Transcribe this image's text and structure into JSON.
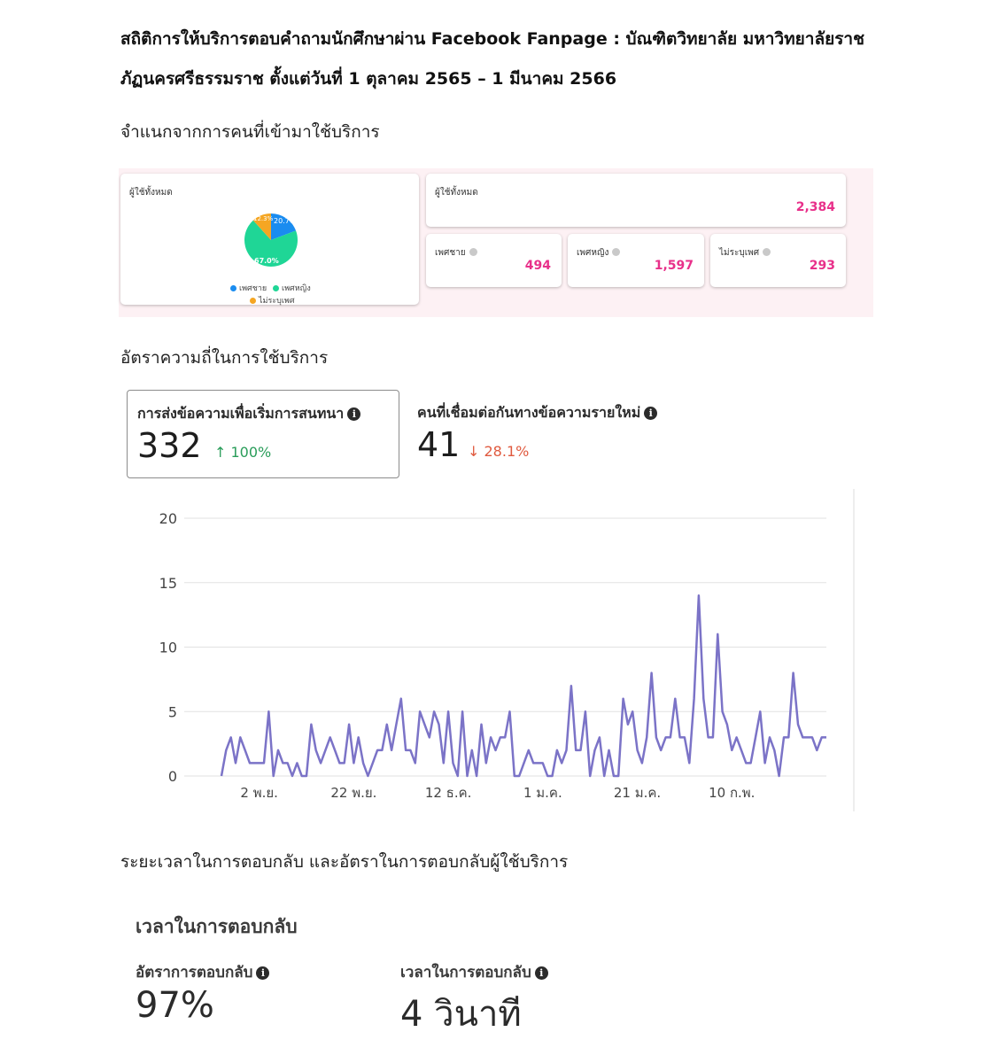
{
  "doc": {
    "title_line1": "สถิติการให้บริการตอบคำถามนักศึกษาผ่าน Facebook Fanpage : บัณฑิตวิทยาลัย มหาวิทยาลัยราช",
    "title_line2": "ภัฏนครศรีธรรมราช ตั้งแต่วันที่ 1 ตุลาคม 2565 – 1 มีนาคม 2566",
    "section1": "จำแนกจากการคนที่เข้ามาใช้บริการ",
    "section2": "อัตราความถี่ในการใช้บริการ",
    "section3": "ระยะเวลาในการตอบกลับ และอัตราในการตอบกลับผู้ใช้บริการ"
  },
  "demographics": {
    "pie_card_label": "ผู้ใช้ทั้งหมด",
    "total_label": "ผู้ใช้ทั้งหมด",
    "total_value": "2,384",
    "male_label": "เพศชาย",
    "male_value": "494",
    "female_label": "เพศหญิง",
    "female_value": "1,597",
    "unknown_label": "ไม่ระบุเพศ",
    "unknown_value": "293",
    "pie_label_male": "20.7%",
    "pie_label_female": "67.0%",
    "pie_label_unknown": "12.3%",
    "legend_male": "เพศชาย",
    "legend_female": "เพศหญิง",
    "legend_unknown": "ไม่ระบุเพศ",
    "colors": {
      "male": "#1a8cf0",
      "female": "#1fd696",
      "unknown": "#f5a623"
    }
  },
  "metrics": {
    "conversations_label": "การส่งข้อความเพื่อเริ่มการสนทนา",
    "conversations_value": "332",
    "conversations_change": "↑ 100%",
    "new_contacts_label": "คนที่เชื่อมต่อกันทางข้อความรายใหม่",
    "new_contacts_value": "41",
    "new_contacts_change": "↓ 28.1%"
  },
  "chart_data": {
    "type": "line",
    "ylim": [
      0,
      20
    ],
    "yticks": [
      0,
      5,
      10,
      15,
      20
    ],
    "xtick_labels": [
      "2 พ.ย.",
      "22 พ.ย.",
      "12 ธ.ค.",
      "1 ม.ค.",
      "21 ม.ค.",
      "10 ก.พ."
    ],
    "xtick_index": [
      8,
      28,
      48,
      68,
      88,
      108
    ],
    "color": "#7b73c7",
    "grid": true,
    "values": [
      0,
      2,
      3,
      1,
      3,
      2,
      1,
      1,
      1,
      1,
      5,
      0,
      2,
      1,
      1,
      0,
      1,
      0,
      0,
      4,
      2,
      1,
      2,
      3,
      2,
      1,
      1,
      4,
      1,
      3,
      1,
      0,
      1,
      2,
      2,
      4,
      2,
      4,
      6,
      2,
      2,
      1,
      5,
      4,
      3,
      5,
      4,
      1,
      5,
      1,
      0,
      5,
      0,
      2,
      0,
      4,
      1,
      3,
      2,
      3,
      3,
      5,
      0,
      0,
      1,
      2,
      1,
      1,
      1,
      0,
      0,
      2,
      1,
      2,
      7,
      2,
      2,
      5,
      0,
      2,
      3,
      0,
      2,
      0,
      0,
      6,
      4,
      5,
      2,
      1,
      3,
      8,
      3,
      2,
      3,
      3,
      6,
      3,
      3,
      1,
      6,
      14,
      6,
      3,
      3,
      11,
      5,
      4,
      2,
      3,
      2,
      1,
      1,
      3,
      5,
      1,
      3,
      2,
      0,
      3,
      3,
      8,
      4,
      3,
      3,
      3,
      2,
      3,
      3
    ]
  },
  "response": {
    "heading": "เวลาในการตอบกลับ",
    "rate_label": "อัตราการตอบกลับ",
    "rate_value": "97%",
    "time_label": "เวลาในการตอบกลับ",
    "time_value": "4 วินาที"
  }
}
